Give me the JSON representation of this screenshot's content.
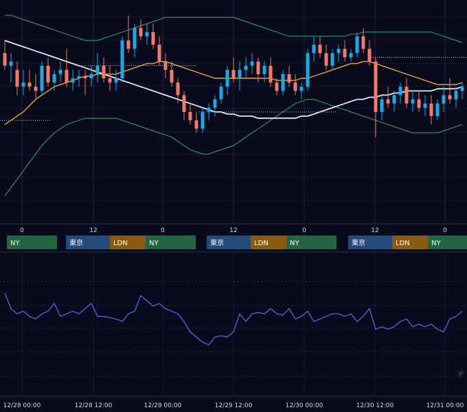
{
  "chart_data": [
    {
      "type": "candlestick",
      "panel": "price",
      "indicators": [
        "bollinger-bands",
        "moving-average-orange",
        "moving-average-white"
      ],
      "colors": {
        "up": "#1ea7e8",
        "down": "#f07a6b",
        "ma_orange": "#f5a03a",
        "ma_white": "#e8e8f0",
        "bollinger": "#3fa66a",
        "background": "#080b1c",
        "grid": "#1c2238"
      },
      "y_range": [
        0,
        100
      ],
      "grid": true,
      "candles": [
        {
          "o": 78,
          "h": 84,
          "l": 70,
          "c": 72
        },
        {
          "o": 72,
          "h": 78,
          "l": 64,
          "c": 74
        },
        {
          "o": 70,
          "h": 74,
          "l": 58,
          "c": 62
        },
        {
          "o": 62,
          "h": 70,
          "l": 58,
          "c": 64
        },
        {
          "o": 64,
          "h": 70,
          "l": 60,
          "c": 62
        },
        {
          "o": 62,
          "h": 68,
          "l": 56,
          "c": 60
        },
        {
          "o": 60,
          "h": 74,
          "l": 58,
          "c": 72
        },
        {
          "o": 72,
          "h": 76,
          "l": 62,
          "c": 64
        },
        {
          "o": 64,
          "h": 70,
          "l": 60,
          "c": 68
        },
        {
          "o": 68,
          "h": 74,
          "l": 64,
          "c": 70
        },
        {
          "o": 70,
          "h": 80,
          "l": 62,
          "c": 64
        },
        {
          "o": 64,
          "h": 70,
          "l": 60,
          "c": 66
        },
        {
          "o": 66,
          "h": 70,
          "l": 62,
          "c": 67
        },
        {
          "o": 67,
          "h": 70,
          "l": 58,
          "c": 66
        },
        {
          "o": 66,
          "h": 72,
          "l": 62,
          "c": 68
        },
        {
          "o": 68,
          "h": 78,
          "l": 64,
          "c": 72
        },
        {
          "o": 72,
          "h": 76,
          "l": 64,
          "c": 66
        },
        {
          "o": 66,
          "h": 72,
          "l": 60,
          "c": 64
        },
        {
          "o": 64,
          "h": 70,
          "l": 60,
          "c": 66
        },
        {
          "o": 66,
          "h": 86,
          "l": 64,
          "c": 84
        },
        {
          "o": 84,
          "h": 96,
          "l": 78,
          "c": 80
        },
        {
          "o": 80,
          "h": 92,
          "l": 76,
          "c": 90
        },
        {
          "o": 90,
          "h": 94,
          "l": 84,
          "c": 86
        },
        {
          "o": 86,
          "h": 92,
          "l": 82,
          "c": 88
        },
        {
          "o": 88,
          "h": 92,
          "l": 80,
          "c": 82
        },
        {
          "o": 82,
          "h": 86,
          "l": 72,
          "c": 74
        },
        {
          "o": 74,
          "h": 78,
          "l": 66,
          "c": 70
        },
        {
          "o": 70,
          "h": 74,
          "l": 62,
          "c": 64
        },
        {
          "o": 64,
          "h": 66,
          "l": 54,
          "c": 58
        },
        {
          "o": 58,
          "h": 60,
          "l": 46,
          "c": 50
        },
        {
          "o": 50,
          "h": 54,
          "l": 44,
          "c": 46
        },
        {
          "o": 46,
          "h": 50,
          "l": 40,
          "c": 42
        },
        {
          "o": 42,
          "h": 52,
          "l": 40,
          "c": 50
        },
        {
          "o": 50,
          "h": 54,
          "l": 46,
          "c": 52
        },
        {
          "o": 52,
          "h": 58,
          "l": 48,
          "c": 56
        },
        {
          "o": 56,
          "h": 64,
          "l": 54,
          "c": 62
        },
        {
          "o": 62,
          "h": 72,
          "l": 58,
          "c": 70
        },
        {
          "o": 70,
          "h": 76,
          "l": 64,
          "c": 66
        },
        {
          "o": 66,
          "h": 74,
          "l": 60,
          "c": 70
        },
        {
          "o": 70,
          "h": 76,
          "l": 66,
          "c": 72
        },
        {
          "o": 72,
          "h": 78,
          "l": 68,
          "c": 74
        },
        {
          "o": 74,
          "h": 76,
          "l": 64,
          "c": 68
        },
        {
          "o": 68,
          "h": 74,
          "l": 64,
          "c": 72
        },
        {
          "o": 72,
          "h": 76,
          "l": 62,
          "c": 64
        },
        {
          "o": 64,
          "h": 66,
          "l": 58,
          "c": 60
        },
        {
          "o": 60,
          "h": 70,
          "l": 58,
          "c": 68
        },
        {
          "o": 68,
          "h": 72,
          "l": 62,
          "c": 64
        },
        {
          "o": 64,
          "h": 68,
          "l": 58,
          "c": 60
        },
        {
          "o": 60,
          "h": 64,
          "l": 56,
          "c": 62
        },
        {
          "o": 62,
          "h": 80,
          "l": 60,
          "c": 78
        },
        {
          "o": 78,
          "h": 86,
          "l": 74,
          "c": 82
        },
        {
          "o": 82,
          "h": 86,
          "l": 76,
          "c": 78
        },
        {
          "o": 78,
          "h": 82,
          "l": 70,
          "c": 72
        },
        {
          "o": 72,
          "h": 80,
          "l": 70,
          "c": 78
        },
        {
          "o": 78,
          "h": 82,
          "l": 74,
          "c": 80
        },
        {
          "o": 80,
          "h": 84,
          "l": 74,
          "c": 76
        },
        {
          "o": 76,
          "h": 80,
          "l": 74,
          "c": 78
        },
        {
          "o": 78,
          "h": 88,
          "l": 76,
          "c": 86
        },
        {
          "o": 86,
          "h": 90,
          "l": 78,
          "c": 80
        },
        {
          "o": 80,
          "h": 84,
          "l": 72,
          "c": 74
        },
        {
          "o": 74,
          "h": 76,
          "l": 38,
          "c": 50
        },
        {
          "o": 50,
          "h": 58,
          "l": 46,
          "c": 56
        },
        {
          "o": 56,
          "h": 62,
          "l": 52,
          "c": 54
        },
        {
          "o": 54,
          "h": 60,
          "l": 50,
          "c": 58
        },
        {
          "o": 58,
          "h": 64,
          "l": 54,
          "c": 62
        },
        {
          "o": 62,
          "h": 66,
          "l": 52,
          "c": 54
        },
        {
          "o": 54,
          "h": 60,
          "l": 50,
          "c": 56
        },
        {
          "o": 56,
          "h": 60,
          "l": 50,
          "c": 52
        },
        {
          "o": 52,
          "h": 58,
          "l": 48,
          "c": 54
        },
        {
          "o": 54,
          "h": 58,
          "l": 44,
          "c": 48
        },
        {
          "o": 48,
          "h": 56,
          "l": 46,
          "c": 54
        },
        {
          "o": 54,
          "h": 62,
          "l": 50,
          "c": 58
        },
        {
          "o": 58,
          "h": 66,
          "l": 54,
          "c": 56
        },
        {
          "o": 56,
          "h": 62,
          "l": 52,
          "c": 60
        },
        {
          "o": 60,
          "h": 64,
          "l": 56,
          "c": 62
        }
      ],
      "ma_orange": [
        44,
        46,
        48,
        50,
        53,
        56,
        58,
        60,
        62,
        63,
        64,
        65,
        66,
        67,
        67,
        68,
        68,
        68,
        68,
        69,
        70,
        71,
        72,
        73,
        73,
        74,
        74,
        73,
        72,
        71,
        70,
        69,
        68,
        67,
        66,
        66,
        66,
        66,
        66,
        66,
        66,
        66,
        66,
        66,
        65,
        65,
        65,
        65,
        66,
        66,
        67,
        68,
        69,
        70,
        71,
        72,
        73,
        73,
        74,
        74,
        73,
        72,
        71,
        70,
        69,
        68,
        67,
        66,
        65,
        64,
        63,
        63,
        63,
        63,
        64
      ],
      "ma_white": [
        84,
        83,
        82,
        81,
        80,
        79,
        78,
        77,
        76,
        75,
        74,
        73,
        72,
        71,
        70,
        69,
        68,
        67,
        66,
        65,
        64,
        63,
        62,
        61,
        60,
        59,
        58,
        57,
        56,
        55,
        54,
        53,
        52,
        51,
        50,
        50,
        49,
        49,
        48,
        48,
        48,
        47,
        47,
        47,
        47,
        47,
        47,
        47,
        48,
        48,
        49,
        50,
        51,
        52,
        53,
        54,
        55,
        56,
        56,
        57,
        57,
        58,
        58,
        59,
        59,
        60,
        60,
        60,
        60,
        60,
        61,
        61,
        61,
        61,
        62
      ],
      "bb_upper": [
        96,
        96,
        95,
        94,
        93,
        92,
        91,
        90,
        89,
        88,
        87,
        86,
        85,
        84,
        84,
        84,
        85,
        86,
        87,
        88,
        89,
        90,
        91,
        92,
        93,
        94,
        95,
        95,
        95,
        95,
        95,
        95,
        95,
        95,
        95,
        95,
        95,
        95,
        94,
        93,
        92,
        91,
        90,
        89,
        88,
        87,
        86,
        86,
        86,
        86,
        86,
        86,
        86,
        86,
        86,
        86,
        87,
        87,
        88,
        88,
        88,
        88,
        88,
        88,
        88,
        88,
        88,
        88,
        88,
        88,
        87,
        86,
        85,
        84,
        83
      ],
      "bb_lower": [
        10,
        14,
        18,
        22,
        26,
        30,
        34,
        37,
        40,
        42,
        44,
        45,
        46,
        47,
        47,
        47,
        47,
        47,
        47,
        46,
        45,
        44,
        43,
        42,
        41,
        40,
        39,
        38,
        36,
        34,
        32,
        31,
        30,
        30,
        31,
        32,
        33,
        34,
        36,
        38,
        40,
        42,
        44,
        46,
        48,
        50,
        52,
        54,
        55,
        56,
        56,
        55,
        54,
        53,
        52,
        51,
        50,
        49,
        48,
        47,
        46,
        45,
        44,
        43,
        42,
        41,
        40,
        40,
        40,
        40,
        40,
        41,
        42,
        43,
        44
      ],
      "reference_lines": [
        76,
        72,
        46,
        50
      ],
      "x_ticks": [
        "0",
        "12",
        "0",
        "12",
        "0",
        "12",
        "0"
      ],
      "sessions": [
        {
          "labels": [
            "NY"
          ]
        },
        {
          "labels": [
            "東京",
            "LDN",
            "NY"
          ]
        },
        {
          "labels": [
            "東京",
            "LDN",
            "NY"
          ]
        },
        {
          "labels": [
            "東京",
            "LDN",
            "NY"
          ]
        }
      ],
      "session_colors": {
        "東京": "#244a7c",
        "LDN": "#8a5a12",
        "NY": "#256642"
      }
    },
    {
      "type": "line",
      "panel": "oscillator",
      "color": "#5b62e6",
      "y_range": [
        0,
        100
      ],
      "values": [
        74,
        62,
        58,
        60,
        56,
        54,
        58,
        60,
        66,
        56,
        58,
        60,
        58,
        62,
        66,
        56,
        56,
        55,
        54,
        52,
        58,
        60,
        72,
        68,
        64,
        66,
        62,
        60,
        58,
        52,
        44,
        40,
        36,
        34,
        40,
        41,
        40,
        44,
        58,
        52,
        58,
        59,
        58,
        62,
        58,
        57,
        62,
        54,
        56,
        60,
        52,
        54,
        56,
        58,
        58,
        56,
        58,
        52,
        56,
        62,
        46,
        48,
        46,
        48,
        52,
        54,
        48,
        50,
        48,
        50,
        46,
        44,
        54,
        56,
        60
      ],
      "x_ticks": [
        "12/28 00:00",
        "12/28 12:00",
        "12/29 00:00",
        "12/29 12:00",
        "12/30 00:00",
        "12/30 12:00",
        "12/31 00:00"
      ],
      "watermark": "デ"
    }
  ]
}
